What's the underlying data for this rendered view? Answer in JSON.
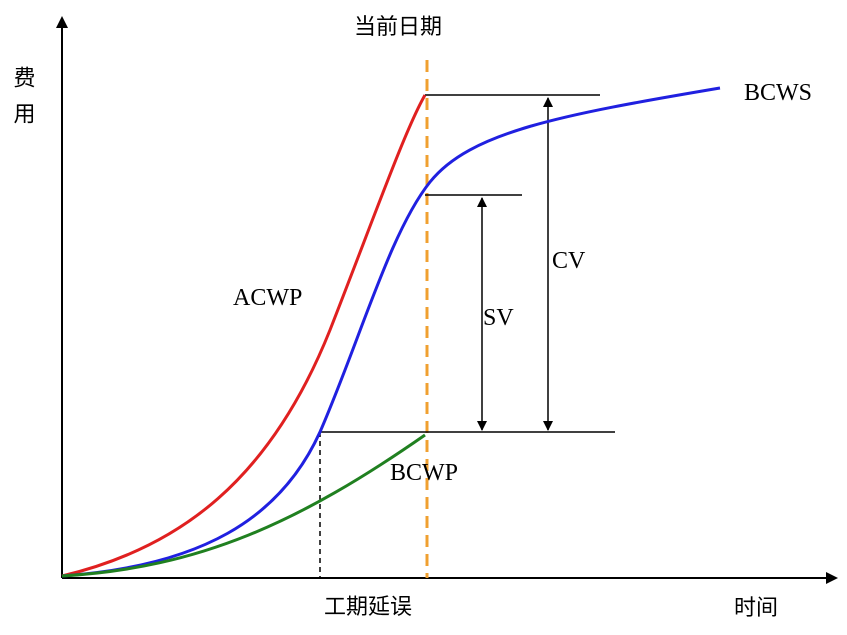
{
  "current_date_label": "当前日期",
  "y_axis_label": "费用",
  "x_axis_label": "时间",
  "curves": [
    {
      "label": "ACWP"
    },
    {
      "label": "BCWS"
    },
    {
      "label": "BCWP"
    }
  ],
  "variances": [
    {
      "label": "SV"
    },
    {
      "label": "CV"
    }
  ],
  "delay_label": "工期延误"
}
